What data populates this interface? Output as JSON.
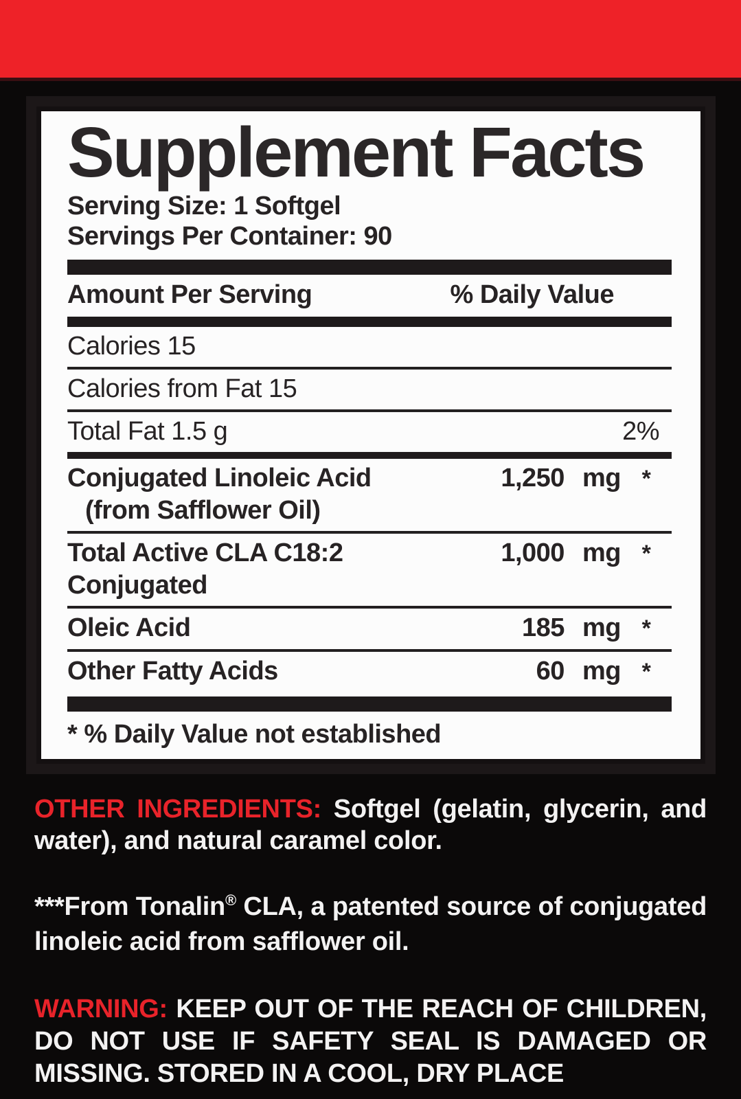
{
  "colors": {
    "band_red": "#ee2228",
    "accent_red": "#e8232a",
    "panel_bg": "#fcfcfc",
    "ink": "#272324",
    "page_bg": "#0b0909",
    "text_white": "#f3f2f2"
  },
  "label": {
    "title": "Supplement Facts",
    "serving_size": "Serving Size: 1 Softgel",
    "servings_per_container": "Servings Per Container: 90",
    "column_headers": {
      "amount": "Amount Per Serving",
      "daily_value": "% Daily Value"
    },
    "rows": [
      {
        "name": "Calories 15",
        "bold": false,
        "sep": "thin"
      },
      {
        "name": "Calories from Fat 15",
        "bold": false,
        "sep": "thin"
      },
      {
        "name": "Total Fat 1.5 g",
        "bold": false,
        "dv": "2%",
        "sep": "medium"
      },
      {
        "name": "Conjugated Linoleic Acid",
        "bold": true,
        "value": "1,250 mg",
        "ast": "*",
        "sub": "(from Safflower Oil)",
        "sub_indent": true,
        "sep": "thin"
      },
      {
        "name": "Total Active CLA C18:2",
        "bold": true,
        "value": "1,000 mg",
        "ast": "*",
        "sub": "Conjugated",
        "sub_indent": false,
        "sep": "thin"
      },
      {
        "name": "Oleic Acid",
        "bold": true,
        "value": "185 mg",
        "ast": "*",
        "sep": "thin"
      },
      {
        "name": "Other Fatty Acids",
        "bold": true,
        "value": "60 mg",
        "ast": "*",
        "sep": "none"
      }
    ],
    "footnote": "* % Daily Value not established"
  },
  "other_ingredients": {
    "label": "OTHER INGREDIENTS:",
    "text": " Softgel (gelatin, glycerin, and water), and natural caramel color."
  },
  "tonalin_note": {
    "prefix": "***From Tonalin",
    "registered_mark": "®",
    "text": " CLA, a patented source of conjugated linoleic acid from safflower oil."
  },
  "warning": {
    "label": "WARNING:",
    "text": " KEEP OUT OF THE REACH OF CHILDREN, DO NOT USE IF SAFETY SEAL IS DAMAGED OR MISSING. STORED IN A COOL, DRY PLACE"
  }
}
